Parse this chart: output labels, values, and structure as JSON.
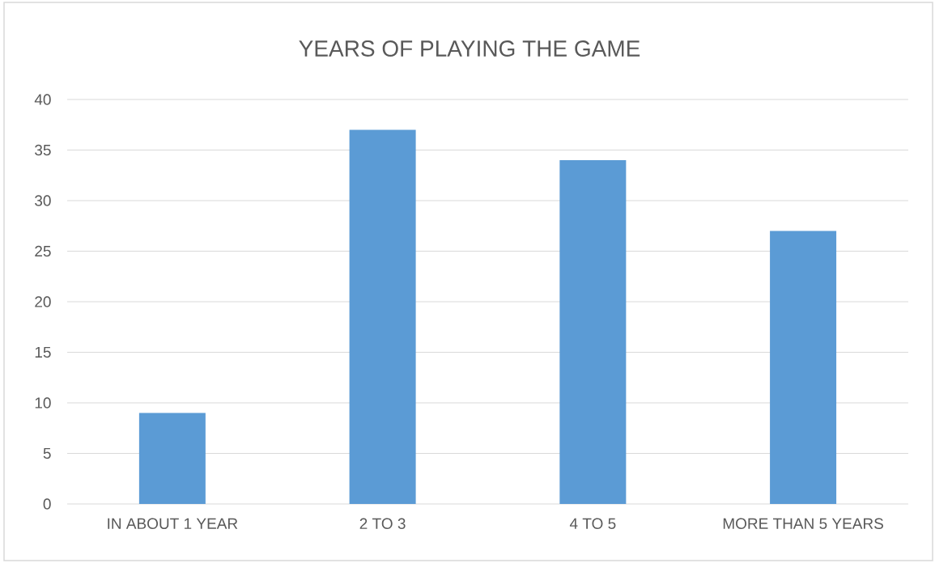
{
  "chart_data": {
    "type": "bar",
    "title": "YEARS OF PLAYING THE GAME",
    "categories": [
      "IN ABOUT 1 YEAR",
      "2 TO 3",
      "4 TO 5",
      "MORE THAN 5 YEARS"
    ],
    "values": [
      9,
      37,
      34,
      27
    ],
    "color": "#5b9bd5",
    "ylim": [
      0,
      40
    ],
    "yticks": [
      0,
      5,
      10,
      15,
      20,
      25,
      30,
      35,
      40
    ],
    "grid": "y"
  }
}
